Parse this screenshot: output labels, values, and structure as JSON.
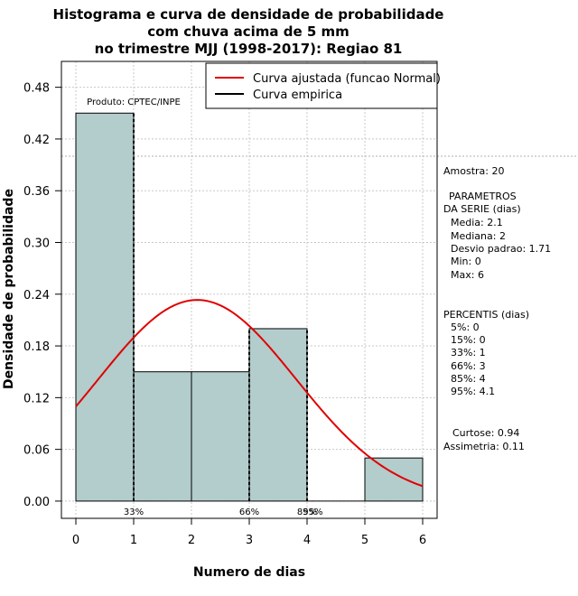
{
  "chart_data": {
    "type": "bar",
    "title_lines": [
      "Histograma e curva de densidade de probabilidade",
      "com chuva acima de 5 mm",
      "no trimestre MJJ (1998-2017): Regiao 81"
    ],
    "xlabel": "Numero de dias",
    "ylabel": "Densidade de probabilidade",
    "xlim": [
      -0.25,
      6.25
    ],
    "ylim": [
      -0.02,
      0.51
    ],
    "xticks": [
      0,
      1,
      2,
      3,
      4,
      5,
      6
    ],
    "xtick_labels": [
      "0",
      "1",
      "2",
      "3",
      "4",
      "5",
      "6"
    ],
    "yticks": [
      0,
      0.06,
      0.12,
      0.18,
      0.24,
      0.3,
      0.36,
      0.42,
      0.48
    ],
    "ytick_labels": [
      "0.00",
      "0.06",
      "0.12",
      "0.18",
      "0.24",
      "0.30",
      "0.36",
      "0.42",
      "0.48"
    ],
    "bins": [
      {
        "start": 0,
        "end": 1,
        "density": 0.45
      },
      {
        "start": 1,
        "end": 2,
        "density": 0.15
      },
      {
        "start": 2,
        "end": 3,
        "density": 0.15
      },
      {
        "start": 3,
        "end": 4,
        "density": 0.2
      },
      {
        "start": 4,
        "end": 5,
        "density": 0.0
      },
      {
        "start": 5,
        "end": 6,
        "density": 0.05
      }
    ],
    "reference_line_y": 0.4,
    "normal_curve": {
      "name": "Curva ajustada (funcao Normal)",
      "mean": 2.1,
      "sd": 1.71,
      "color": "#e00000"
    },
    "empirical_curve": {
      "name": "Curva empirica",
      "color": "#000000"
    },
    "percentile_lines": [
      {
        "x": 1,
        "label": "33%"
      },
      {
        "x": 3,
        "label": "66%"
      },
      {
        "x": 4,
        "label": "85%"
      },
      {
        "x": 4.1,
        "label": "95%"
      }
    ],
    "bar_color": "#b3cccc",
    "source_note": "Produto: CPTEC/INPE",
    "stats": {
      "amostra": "Amostra: 20",
      "param_title_1": "PARAMETROS",
      "param_title_2": "DA SERIE (dias)",
      "media": "Media: 2.1",
      "mediana": "Mediana: 2",
      "desvio": "Desvio padrao: 1.71",
      "min": "Min: 0",
      "max": "Max: 6",
      "perc_title": "PERCENTIS (dias)",
      "p5": "5%: 0",
      "p15": "15%: 0",
      "p33": "33%: 1",
      "p66": "66%: 3",
      "p85": "85%: 4",
      "p95": "95%: 4.1",
      "curtose": "Curtose: 0.94",
      "assimetria": "Assimetria: 0.11"
    }
  }
}
